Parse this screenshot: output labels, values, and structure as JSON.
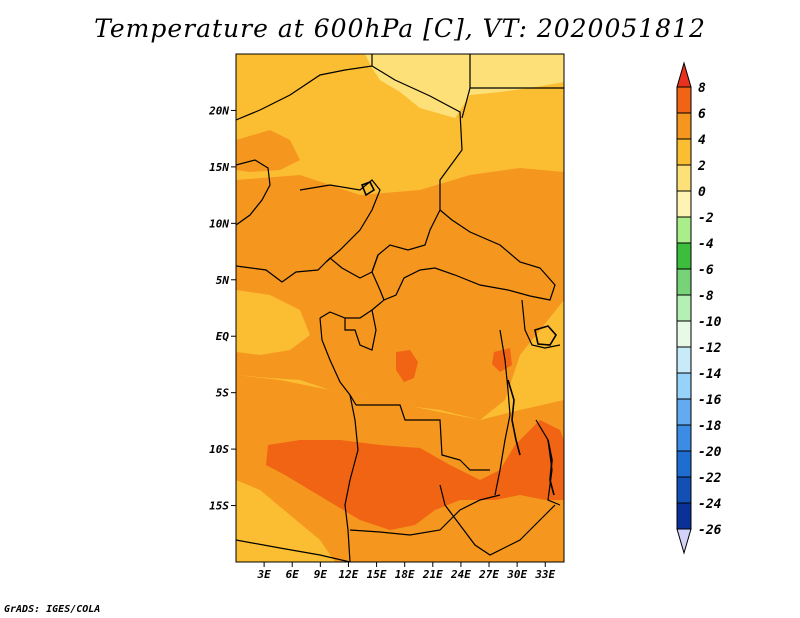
{
  "title": "Temperature at 600hPa [C], VT: 2020051812",
  "credit": "GrADS: IGES/COLA",
  "map": {
    "region": "Central Africa",
    "lon_range": [
      0,
      35
    ],
    "lat_range": [
      -20,
      25
    ],
    "lon_ticks": [
      {
        "lon": 3,
        "label": "3E"
      },
      {
        "lon": 6,
        "label": "6E"
      },
      {
        "lon": 9,
        "label": "9E"
      },
      {
        "lon": 12,
        "label": "12E"
      },
      {
        "lon": 15,
        "label": "15E"
      },
      {
        "lon": 18,
        "label": "18E"
      },
      {
        "lon": 21,
        "label": "21E"
      },
      {
        "lon": 24,
        "label": "24E"
      },
      {
        "lon": 27,
        "label": "27E"
      },
      {
        "lon": 30,
        "label": "30E"
      },
      {
        "lon": 33,
        "label": "33E"
      }
    ],
    "lat_ticks": [
      {
        "lat": 20,
        "label": "20N"
      },
      {
        "lat": 15,
        "label": "15N"
      },
      {
        "lat": 10,
        "label": "10N"
      },
      {
        "lat": 5,
        "label": "5N"
      },
      {
        "lat": 0,
        "label": "EQ"
      },
      {
        "lat": -5,
        "label": "5S"
      },
      {
        "lat": -10,
        "label": "10S"
      },
      {
        "lat": -15,
        "label": "15S"
      }
    ]
  },
  "colorbar": {
    "levels": [
      "8",
      "6",
      "4",
      "2",
      "0",
      "-2",
      "-4",
      "-6",
      "-8",
      "-10",
      "-12",
      "-14",
      "-16",
      "-18",
      "-20",
      "-22",
      "-24",
      "-26"
    ],
    "colors": [
      "#e8321e",
      "#f06414",
      "#f5961e",
      "#fbbe32",
      "#fde178",
      "#fef3b4",
      "#aaee8c",
      "#3cbe3c",
      "#78d278",
      "#b4f0b4",
      "#e6fae6",
      "#c8ebfa",
      "#96d2fa",
      "#64aaf0",
      "#3c8ce6",
      "#1e6ed2",
      "#1450b4",
      "#0a3296",
      "#0a0f6e"
    ],
    "top_arrow_color": "#e8321e",
    "bottom_arrow_color": "#d2d2fa"
  },
  "field_colors": {
    "c0": "#fde178",
    "c2": "#fbbe32",
    "c4": "#f5961e",
    "c6": "#f06414"
  }
}
